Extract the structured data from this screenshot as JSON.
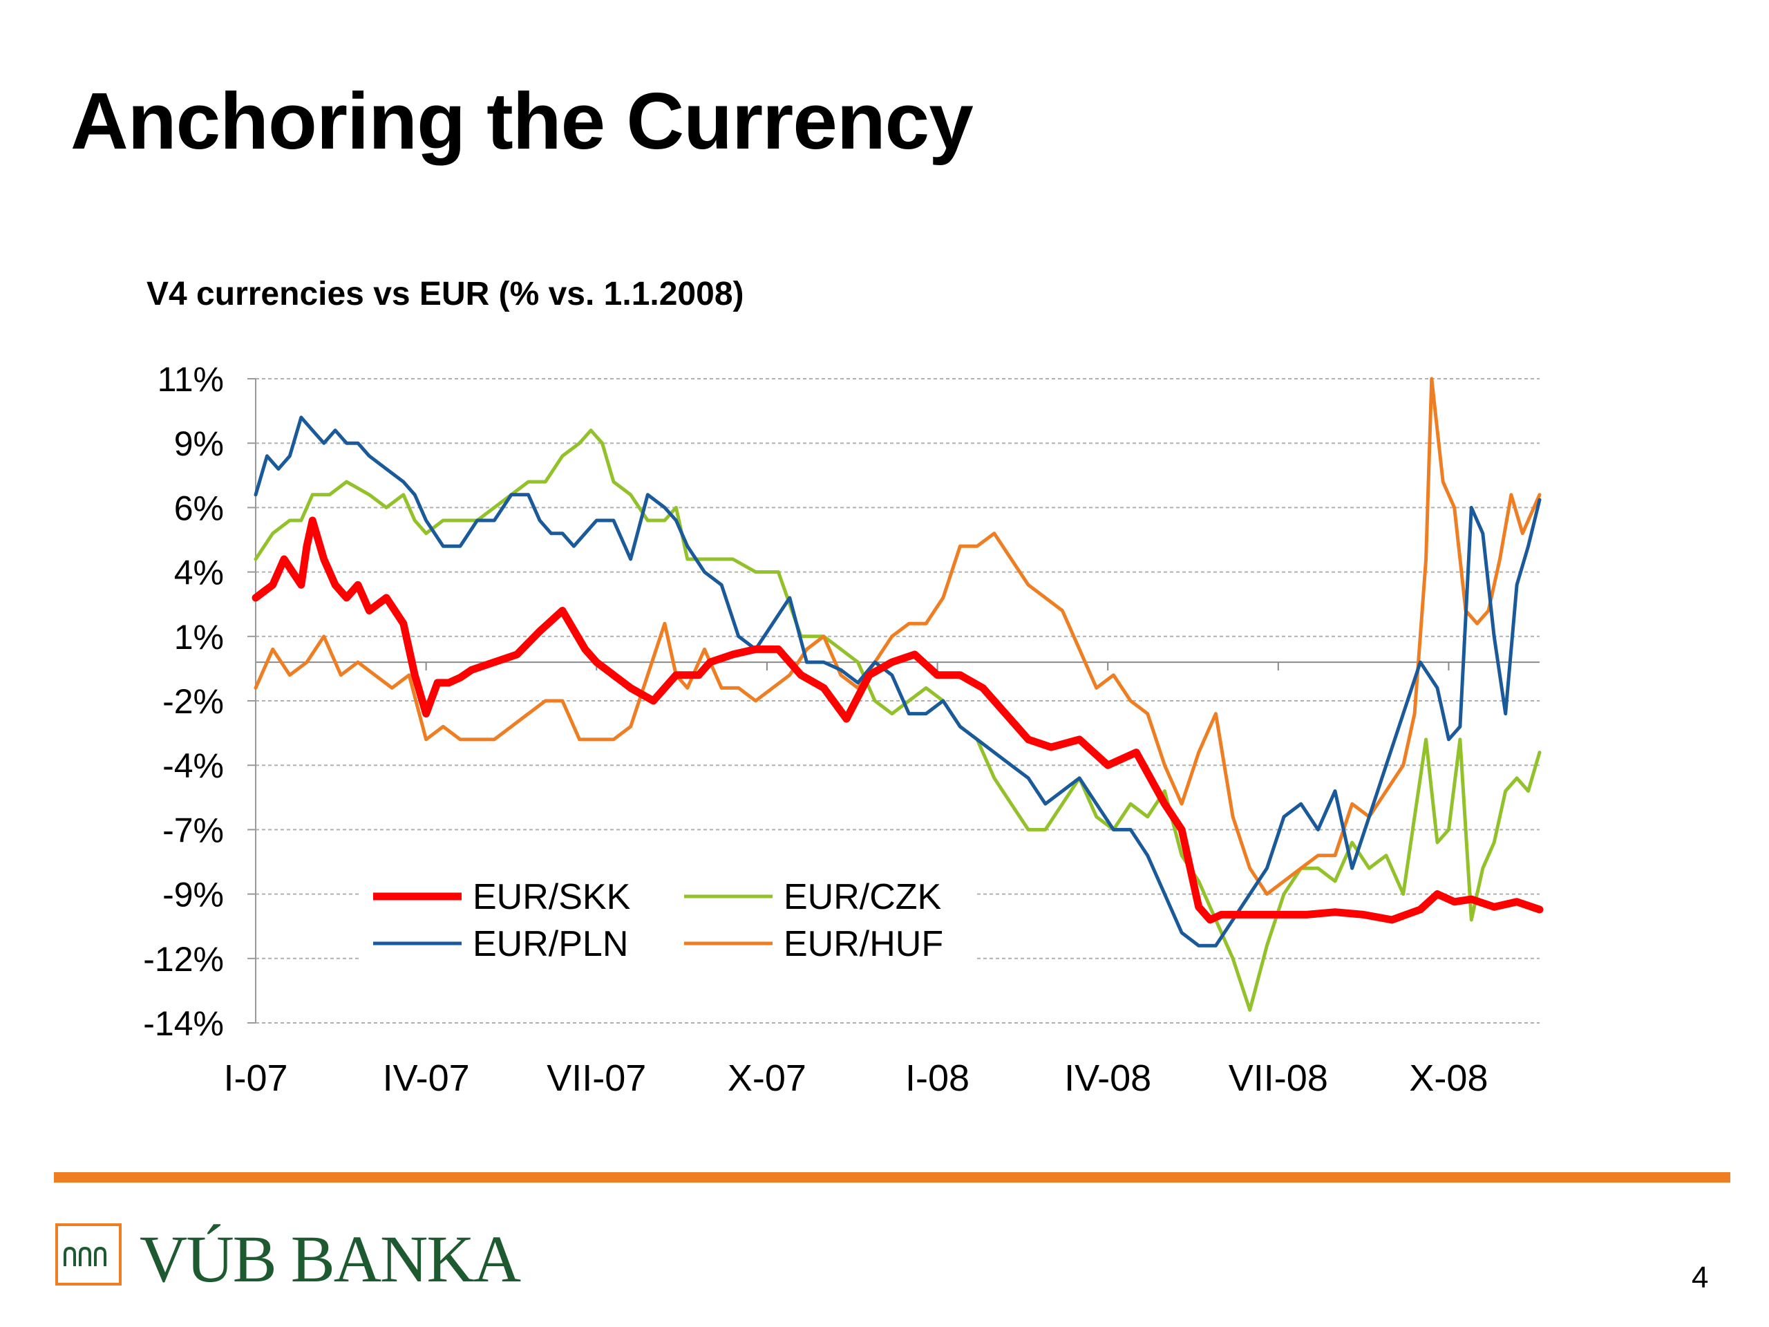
{
  "slide": {
    "title": "Anchoring the Currency",
    "page_number": "4",
    "logo_text": "VÚB BANKA",
    "accent_color": "#ef7d22",
    "logo_color": "#1e5a30"
  },
  "chart_data": {
    "type": "line",
    "title": "V4 currencies vs EUR (% vs. 1.1.2008)",
    "xlabel": "",
    "ylabel": "",
    "x_tick_labels": [
      "I-07",
      "IV-07",
      "VII-07",
      "X-07",
      "I-08",
      "IV-08",
      "VII-08",
      "X-08"
    ],
    "y_tick_labels": [
      "11%",
      "9%",
      "6%",
      "4%",
      "1%",
      "-2%",
      "-4%",
      "-7%",
      "-9%",
      "-12%",
      "-14%"
    ],
    "y_tick_values": [
      11,
      8.5,
      6,
      3.5,
      1,
      -1.5,
      -4,
      -6.5,
      -9,
      -11.5,
      -14
    ],
    "ylim": [
      -14,
      11
    ],
    "zero_line": 0,
    "grid": "horizontal dashed",
    "legend_position": "bottom-left inside plot",
    "x_unit": "months since Jan 2007",
    "xlim": [
      0,
      22.6
    ],
    "series": [
      {
        "name": "EUR/SKK",
        "color": "#ff0000",
        "line_width": 11,
        "x": [
          0,
          0.3,
          0.5,
          0.8,
          0.9,
          1.0,
          1.2,
          1.4,
          1.6,
          1.8,
          2.0,
          2.3,
          2.6,
          2.8,
          3.0,
          3.2,
          3.4,
          3.6,
          3.8,
          4.2,
          4.6,
          5.0,
          5.4,
          5.8,
          6.0,
          6.3,
          6.6,
          7.0,
          7.4,
          7.8,
          8.0,
          8.4,
          8.8,
          9.2,
          9.6,
          10.0,
          10.4,
          10.8,
          11.2,
          11.6,
          12.0,
          12.4,
          12.8,
          13.2,
          13.6,
          14.0,
          14.5,
          15.0,
          15.5,
          16.0,
          16.3,
          16.6,
          16.8,
          17.0,
          17.5,
          18.0,
          18.5,
          19.0,
          19.5,
          20.0,
          20.5,
          20.8,
          21.1,
          21.4,
          21.8,
          22.2,
          22.6
        ],
        "y": [
          2.5,
          3.0,
          4.0,
          3.0,
          4.5,
          5.5,
          4.0,
          3.0,
          2.5,
          3.0,
          2.0,
          2.5,
          1.5,
          -0.5,
          -2.0,
          -0.8,
          -0.8,
          -0.6,
          -0.3,
          0.0,
          0.3,
          1.2,
          2.0,
          0.5,
          0.0,
          -0.5,
          -1.0,
          -1.5,
          -0.5,
          -0.5,
          0.0,
          0.3,
          0.5,
          0.5,
          -0.5,
          -1.0,
          -2.2,
          -0.5,
          0.0,
          0.3,
          -0.5,
          -0.5,
          -1.0,
          -2.0,
          -3.0,
          -3.3,
          -3.0,
          -4.0,
          -3.5,
          -5.5,
          -6.5,
          -9.5,
          -10.0,
          -9.8,
          -9.8,
          -9.8,
          -9.8,
          -9.7,
          -9.8,
          -10.0,
          -9.6,
          -9.0,
          -9.3,
          -9.2,
          -9.5,
          -9.3,
          -9.6
        ]
      },
      {
        "name": "EUR/PLN",
        "color": "#1a5a9a",
        "line_width": 5,
        "x": [
          0,
          0.2,
          0.4,
          0.6,
          0.8,
          1.0,
          1.2,
          1.4,
          1.6,
          1.8,
          2.0,
          2.3,
          2.6,
          2.8,
          3.0,
          3.3,
          3.6,
          3.9,
          4.2,
          4.5,
          4.8,
          5.0,
          5.2,
          5.4,
          5.6,
          5.8,
          6.0,
          6.3,
          6.6,
          6.9,
          7.2,
          7.4,
          7.6,
          7.9,
          8.2,
          8.5,
          8.8,
          9.1,
          9.4,
          9.7,
          10.0,
          10.3,
          10.6,
          10.9,
          11.2,
          11.5,
          11.8,
          12.1,
          12.4,
          12.7,
          13.0,
          13.3,
          13.6,
          13.9,
          14.2,
          14.5,
          14.8,
          15.1,
          15.4,
          15.7,
          16.0,
          16.3,
          16.6,
          16.9,
          17.2,
          17.5,
          17.8,
          18.1,
          18.4,
          18.7,
          19.0,
          19.3,
          19.6,
          19.9,
          20.2,
          20.5,
          20.8,
          21.0,
          21.2,
          21.4,
          21.6,
          21.8,
          22.0,
          22.2,
          22.4,
          22.6
        ],
        "y": [
          6.5,
          8.0,
          7.5,
          8.0,
          9.5,
          9.0,
          8.5,
          9.0,
          8.5,
          8.5,
          8.0,
          7.5,
          7.0,
          6.5,
          5.5,
          4.5,
          4.5,
          5.5,
          5.5,
          6.5,
          6.5,
          5.5,
          5.0,
          5.0,
          4.5,
          5.0,
          5.5,
          5.5,
          4.0,
          6.5,
          6.0,
          5.5,
          4.5,
          3.5,
          3.0,
          1.0,
          0.5,
          1.5,
          2.5,
          0.0,
          0.0,
          -0.3,
          -0.8,
          0.0,
          -0.5,
          -2.0,
          -2.0,
          -1.5,
          -2.5,
          -3.0,
          -3.5,
          -4.0,
          -4.5,
          -5.5,
          -5.0,
          -4.5,
          -5.5,
          -6.5,
          -6.5,
          -7.5,
          -9.0,
          -10.5,
          -11.0,
          -11.0,
          -10.0,
          -9.0,
          -8.0,
          -6.0,
          -5.5,
          -6.5,
          -5.0,
          -8.0,
          -6.0,
          -4.0,
          -2.0,
          0.0,
          -1.0,
          -3.0,
          -2.5,
          6.0,
          5.0,
          1.0,
          -2.0,
          3.0,
          4.5,
          6.3
        ]
      },
      {
        "name": "EUR/CZK",
        "color": "#92c12a",
        "line_width": 5,
        "x": [
          0,
          0.3,
          0.6,
          0.8,
          1.0,
          1.3,
          1.6,
          2.0,
          2.3,
          2.6,
          2.8,
          3.0,
          3.3,
          3.6,
          3.9,
          4.2,
          4.5,
          4.8,
          5.1,
          5.4,
          5.7,
          5.9,
          6.1,
          6.3,
          6.6,
          6.9,
          7.2,
          7.4,
          7.6,
          8.0,
          8.4,
          8.8,
          9.2,
          9.6,
          10.0,
          10.3,
          10.6,
          10.9,
          11.2,
          11.5,
          11.8,
          12.1,
          12.4,
          12.7,
          13.0,
          13.3,
          13.6,
          13.9,
          14.2,
          14.5,
          14.8,
          15.1,
          15.4,
          15.7,
          16.0,
          16.3,
          16.6,
          16.9,
          17.2,
          17.5,
          17.8,
          18.1,
          18.4,
          18.7,
          19.0,
          19.3,
          19.6,
          19.9,
          20.2,
          20.4,
          20.6,
          20.8,
          21.0,
          21.2,
          21.4,
          21.6,
          21.8,
          22.0,
          22.2,
          22.4,
          22.6
        ],
        "y": [
          4.0,
          5.0,
          5.5,
          5.5,
          6.5,
          6.5,
          7.0,
          6.5,
          6.0,
          6.5,
          5.5,
          5.0,
          5.5,
          5.5,
          5.5,
          6.0,
          6.5,
          7.0,
          7.0,
          8.0,
          8.5,
          9.0,
          8.5,
          7.0,
          6.5,
          5.5,
          5.5,
          6.0,
          4.0,
          4.0,
          4.0,
          3.5,
          3.5,
          1.0,
          1.0,
          0.5,
          0.0,
          -1.5,
          -2.0,
          -1.5,
          -1.0,
          -1.5,
          -2.5,
          -3.0,
          -4.5,
          -5.5,
          -6.5,
          -6.5,
          -5.5,
          -4.5,
          -6.0,
          -6.5,
          -5.5,
          -6.0,
          -5.0,
          -7.5,
          -8.5,
          -10.0,
          -11.5,
          -13.5,
          -11.0,
          -9.0,
          -8.0,
          -8.0,
          -8.5,
          -7.0,
          -8.0,
          -7.5,
          -9.0,
          -6.0,
          -3.0,
          -7.0,
          -6.5,
          -3.0,
          -10.0,
          -8.0,
          -7.0,
          -5.0,
          -4.5,
          -5.0,
          -3.5
        ]
      },
      {
        "name": "EUR/HUF",
        "color": "#ef7d22",
        "line_width": 5,
        "x": [
          0,
          0.3,
          0.6,
          0.9,
          1.2,
          1.5,
          1.8,
          2.1,
          2.4,
          2.7,
          3.0,
          3.3,
          3.6,
          3.9,
          4.2,
          4.5,
          4.8,
          5.1,
          5.4,
          5.7,
          6.0,
          6.3,
          6.6,
          6.9,
          7.2,
          7.4,
          7.6,
          7.9,
          8.2,
          8.5,
          8.8,
          9.1,
          9.4,
          9.7,
          10.0,
          10.3,
          10.6,
          10.9,
          11.2,
          11.5,
          11.8,
          12.1,
          12.4,
          12.7,
          13.0,
          13.3,
          13.6,
          13.9,
          14.2,
          14.5,
          14.8,
          15.1,
          15.4,
          15.7,
          16.0,
          16.3,
          16.6,
          16.9,
          17.2,
          17.5,
          17.8,
          18.1,
          18.4,
          18.7,
          19.0,
          19.3,
          19.6,
          19.9,
          20.2,
          20.4,
          20.6,
          20.7,
          20.9,
          21.1,
          21.3,
          21.5,
          21.7,
          21.9,
          22.1,
          22.3,
          22.6
        ],
        "y": [
          -1.0,
          0.5,
          -0.5,
          0.0,
          1.0,
          -0.5,
          0.0,
          -0.5,
          -1.0,
          -0.5,
          -3.0,
          -2.5,
          -3.0,
          -3.0,
          -3.0,
          -2.5,
          -2.0,
          -1.5,
          -1.5,
          -3.0,
          -3.0,
          -3.0,
          -2.5,
          -0.5,
          1.5,
          -0.5,
          -1.0,
          0.5,
          -1.0,
          -1.0,
          -1.5,
          -1.0,
          -0.5,
          0.5,
          1.0,
          -0.5,
          -1.0,
          0.0,
          1.0,
          1.5,
          1.5,
          2.5,
          4.5,
          4.5,
          5.0,
          4.0,
          3.0,
          2.5,
          2.0,
          0.5,
          -1.0,
          -0.5,
          -1.5,
          -2.0,
          -4.0,
          -5.5,
          -3.5,
          -2.0,
          -6.0,
          -8.0,
          -9.0,
          -8.5,
          -8.0,
          -7.5,
          -7.5,
          -5.5,
          -6.0,
          -5.0,
          -4.0,
          -2.0,
          4.0,
          11.0,
          7.0,
          6.0,
          2.0,
          1.5,
          2.0,
          4.0,
          6.5,
          5.0,
          6.5
        ]
      }
    ]
  }
}
